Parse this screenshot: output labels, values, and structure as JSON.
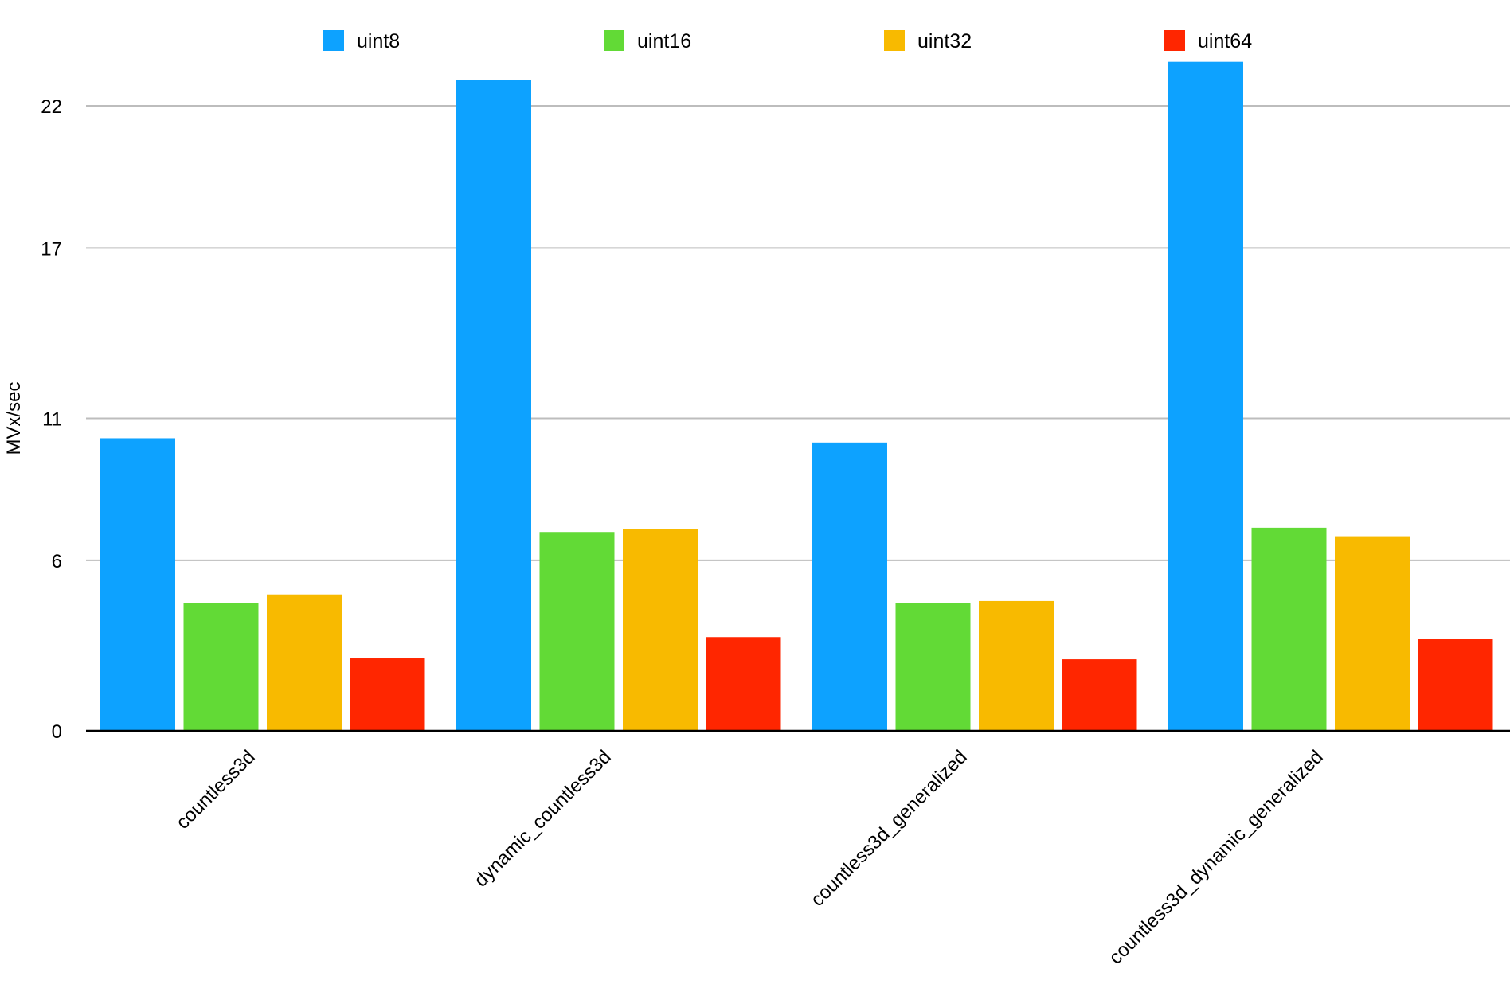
{
  "chart_data": {
    "type": "bar",
    "title": "",
    "xlabel": "",
    "ylabel": "MVx/sec",
    "ylim": [
      0,
      22
    ],
    "yticks": [
      0,
      6,
      11,
      17,
      22
    ],
    "grid": true,
    "legend_position": "top",
    "categories": [
      "countless3d",
      "dynamic_countless3d",
      "countless3d_generalized",
      "countless3d_dynamic_generalized"
    ],
    "series": [
      {
        "name": "uint8",
        "color": "#0DA2FF",
        "values": [
          10.3,
          22.9,
          10.15,
          23.55
        ]
      },
      {
        "name": "uint16",
        "color": "#62DA36",
        "values": [
          4.5,
          7.0,
          4.5,
          7.15
        ]
      },
      {
        "name": "uint32",
        "color": "#F8BA00",
        "values": [
          4.8,
          7.1,
          4.57,
          6.85
        ]
      },
      {
        "name": "uint64",
        "color": "#FF2600",
        "values": [
          2.55,
          3.3,
          2.52,
          3.25
        ]
      }
    ]
  }
}
